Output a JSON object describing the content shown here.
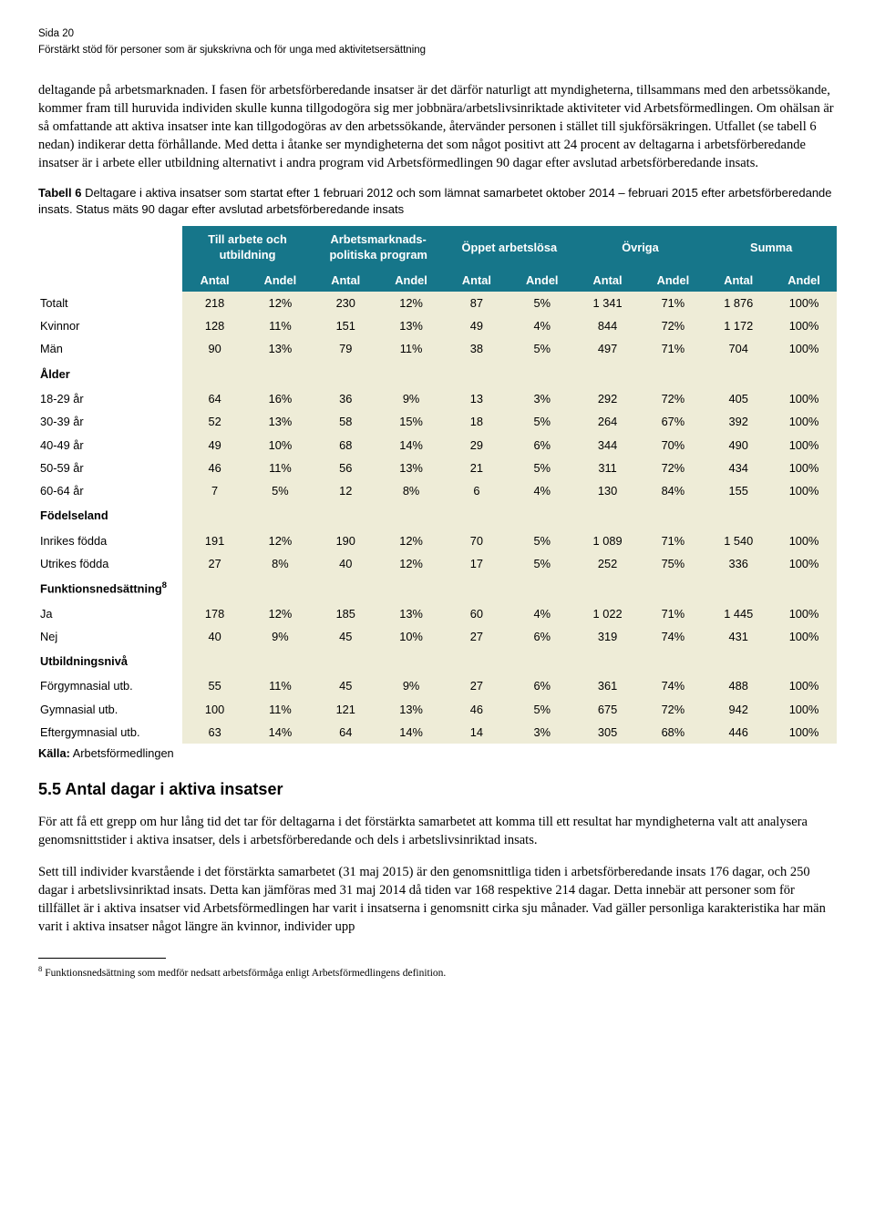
{
  "header": {
    "page_line": "Sida 20",
    "subtitle": "Förstärkt stöd för personer som är sjukskrivna och för unga med aktivitetsersättning"
  },
  "para1": "deltagande på arbetsmarknaden. I fasen för arbetsförberedande insatser är det därför naturligt att myndigheterna, tillsammans med den arbetssökande, kommer fram till huruvida individen skulle kunna tillgodogöra sig mer jobbnära/arbetslivsinriktade aktiviteter vid Arbetsförmedlingen. Om ohälsan är så omfattande att aktiva insatser inte kan tillgodogöras av den arbetssökande, återvänder personen i stället till sjukförsäkringen. Utfallet (se tabell 6 nedan) indikerar detta förhållande. Med detta i åtanke ser myndigheterna det som något positivt att 24 procent av deltagarna i arbetsförberedande insatser är i arbete eller utbildning alternativt i andra program vid Arbetsförmedlingen 90 dagar efter avslutad arbetsförberedande insats.",
  "caption_bold": "Tabell 6",
  "caption_rest": " Deltagare i aktiva insatser som startat efter 1 februari 2012 och som lämnat samarbetet oktober 2014 – februari 2015 efter arbetsförberedande insats. Status mäts 90 dagar efter avslutad arbetsförberedande insats",
  "table": {
    "header_bg": "#16768a",
    "cell_bg": "#eeecd7",
    "groups": [
      "Till arbete och utbildning",
      "Arbetsmarknads-politiska program",
      "Öppet arbetslösa",
      "Övriga",
      "Summa"
    ],
    "sub": [
      "Antal",
      "Andel"
    ],
    "rows": [
      {
        "type": "data",
        "label": "Totalt",
        "v": [
          "218",
          "12%",
          "230",
          "12%",
          "87",
          "5%",
          "1 341",
          "71%",
          "1 876",
          "100%"
        ]
      },
      {
        "type": "data",
        "label": "Kvinnor",
        "v": [
          "128",
          "11%",
          "151",
          "13%",
          "49",
          "4%",
          "844",
          "72%",
          "1 172",
          "100%"
        ]
      },
      {
        "type": "data",
        "label": "Män",
        "v": [
          "90",
          "13%",
          "79",
          "11%",
          "38",
          "5%",
          "497",
          "71%",
          "704",
          "100%"
        ]
      },
      {
        "type": "section",
        "label": "Ålder"
      },
      {
        "type": "data",
        "label": "18-29 år",
        "v": [
          "64",
          "16%",
          "36",
          "9%",
          "13",
          "3%",
          "292",
          "72%",
          "405",
          "100%"
        ]
      },
      {
        "type": "data",
        "label": "30-39 år",
        "v": [
          "52",
          "13%",
          "58",
          "15%",
          "18",
          "5%",
          "264",
          "67%",
          "392",
          "100%"
        ]
      },
      {
        "type": "data",
        "label": "40-49 år",
        "v": [
          "49",
          "10%",
          "68",
          "14%",
          "29",
          "6%",
          "344",
          "70%",
          "490",
          "100%"
        ]
      },
      {
        "type": "data",
        "label": "50-59 år",
        "v": [
          "46",
          "11%",
          "56",
          "13%",
          "21",
          "5%",
          "311",
          "72%",
          "434",
          "100%"
        ]
      },
      {
        "type": "data",
        "label": "60-64 år",
        "v": [
          "7",
          "5%",
          "12",
          "8%",
          "6",
          "4%",
          "130",
          "84%",
          "155",
          "100%"
        ]
      },
      {
        "type": "section",
        "label": "Födelseland"
      },
      {
        "type": "data",
        "label": "Inrikes födda",
        "v": [
          "191",
          "12%",
          "190",
          "12%",
          "70",
          "5%",
          "1 089",
          "71%",
          "1 540",
          "100%"
        ]
      },
      {
        "type": "data",
        "label": "Utrikes födda",
        "v": [
          "27",
          "8%",
          "40",
          "12%",
          "17",
          "5%",
          "252",
          "75%",
          "336",
          "100%"
        ]
      },
      {
        "type": "section",
        "label": "Funktionsnedsättning",
        "sup": "8"
      },
      {
        "type": "data",
        "label": "Ja",
        "v": [
          "178",
          "12%",
          "185",
          "13%",
          "60",
          "4%",
          "1 022",
          "71%",
          "1 445",
          "100%"
        ]
      },
      {
        "type": "data",
        "label": "Nej",
        "v": [
          "40",
          "9%",
          "45",
          "10%",
          "27",
          "6%",
          "319",
          "74%",
          "431",
          "100%"
        ]
      },
      {
        "type": "section",
        "label": "Utbildningsnivå"
      },
      {
        "type": "data",
        "label": "Förgymnasial utb.",
        "v": [
          "55",
          "11%",
          "45",
          "9%",
          "27",
          "6%",
          "361",
          "74%",
          "488",
          "100%"
        ]
      },
      {
        "type": "data",
        "label": "Gymnasial utb.",
        "v": [
          "100",
          "11%",
          "121",
          "13%",
          "46",
          "5%",
          "675",
          "72%",
          "942",
          "100%"
        ]
      },
      {
        "type": "data",
        "label": "Eftergymnasial utb.",
        "v": [
          "63",
          "14%",
          "64",
          "14%",
          "14",
          "3%",
          "305",
          "68%",
          "446",
          "100%"
        ]
      }
    ],
    "col_widths_pct": [
      18,
      8.2,
      8.2,
      8.2,
      8.2,
      8.2,
      8.2,
      8.2,
      8.2,
      8.2,
      8.2
    ]
  },
  "source_label": "Källa:",
  "source_value": " Arbetsförmedlingen",
  "section_heading": "5.5 Antal dagar i aktiva insatser",
  "para2": "För att få ett grepp om hur lång tid det tar för deltagarna i det förstärkta samarbetet att komma till ett resultat har myndigheterna valt att analysera genomsnittstider i aktiva insatser, dels i arbetsförberedande och dels i arbetslivsinriktad insats.",
  "para3": "Sett till individer kvarstående i det förstärkta samarbetet (31 maj 2015) är den genomsnittliga tiden i arbetsförberedande insats 176 dagar, och 250 dagar i arbetslivsinriktad insats. Detta kan jämföras med 31 maj 2014 då tiden var 168 respektive 214 dagar. Detta innebär att personer som för tillfället är i aktiva insatser vid Arbetsförmedlingen har varit i insatserna i genomsnitt cirka sju månader. Vad gäller personliga karakteristika har män varit i aktiva insatser något längre än kvinnor, individer upp",
  "footnote_num": "8",
  "footnote_text": " Funktionsnedsättning som medför nedsatt arbetsförmåga enligt Arbetsförmedlingens definition."
}
